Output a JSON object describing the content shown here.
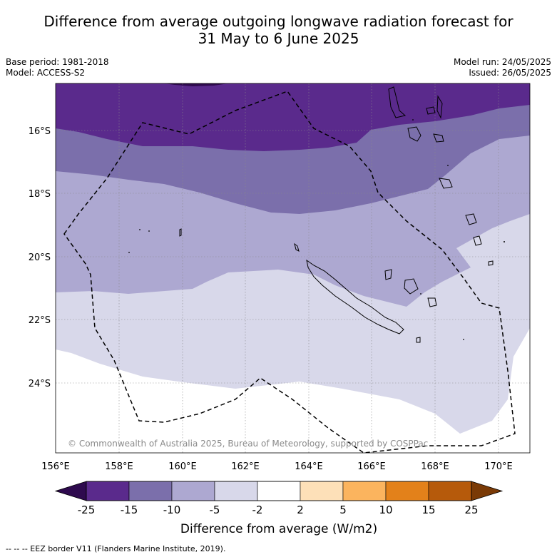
{
  "title_line1": "Difference from average outgoing longwave radiation forecast for",
  "title_line2": "31 May to 6 June 2025",
  "meta": {
    "base_period": "Base period: 1981-2018",
    "model": "Model: ACCESS-S2",
    "model_run": "Model run: 24/05/2025",
    "issued": "Issued: 26/05/2025"
  },
  "copyright": "© Commonwealth of Australia 2025, Bureau of Meteorology, supported by COSPPac",
  "lat_labels": [
    "16°S",
    "18°S",
    "20°S",
    "22°S",
    "24°S"
  ],
  "lon_labels": [
    "156°E",
    "158°E",
    "160°E",
    "162°E",
    "164°E",
    "166°E",
    "168°E",
    "170°E"
  ],
  "colorbar": {
    "ticks": [
      "-25",
      "-15",
      "-10",
      "-5",
      "-2",
      "2",
      "5",
      "10",
      "15",
      "25"
    ],
    "colors": [
      "#5a2a8c",
      "#7b6fab",
      "#ada8d1",
      "#d8d8ea",
      "#ffffff",
      "#fde0b8",
      "#fbb45e",
      "#e3811a",
      "#b65a0b"
    ],
    "under_color": "#2e0a4e",
    "over_color": "#7a3a06",
    "title": "Difference from average (W/m2)"
  },
  "legend_note": "--  --  -- EEZ border V11 (Flanders Marine Institute, 2019)."
}
